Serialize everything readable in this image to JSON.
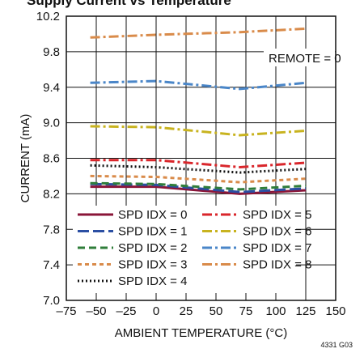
{
  "header": {
    "cropped_title": "Supply Current vs Temperature"
  },
  "figure_id": "4331 G03",
  "chart_data": {
    "type": "line",
    "title": "",
    "xlabel": "AMBIENT TEMPERATURE (°C)",
    "ylabel": "CURRENT (mA)",
    "xlim": [
      -75,
      150
    ],
    "ylim": [
      7.0,
      10.2
    ],
    "x_ticks": [
      -75,
      -50,
      -25,
      0,
      25,
      50,
      75,
      100,
      125,
      150
    ],
    "x_tick_labels": [
      "–75",
      "–50",
      "–25",
      "0",
      "25",
      "50",
      "75",
      "100",
      "125",
      "150"
    ],
    "y_ticks": [
      7.0,
      7.4,
      7.8,
      8.2,
      8.6,
      9.0,
      9.4,
      9.8,
      10.2
    ],
    "y_tick_labels": [
      "7.0",
      "7.4",
      "7.8",
      "8.2",
      "8.6",
      "9.0",
      "9.4",
      "9.8",
      "10.2"
    ],
    "grid": true,
    "legend_position": "bottom",
    "annotation": "REMOTE = 0",
    "x": [
      -55,
      0,
      70,
      125
    ],
    "series": [
      {
        "name": "SPD IDX = 0",
        "values": [
          8.28,
          8.28,
          8.2,
          8.24
        ],
        "color": "#8a1538",
        "dash": "solid"
      },
      {
        "name": "SPD IDX = 1",
        "values": [
          8.31,
          8.3,
          8.22,
          8.26
        ],
        "color": "#2b4fa3",
        "dash": "longdash"
      },
      {
        "name": "SPD IDX = 2",
        "values": [
          8.32,
          8.31,
          8.25,
          8.29
        ],
        "color": "#2f7d3a",
        "dash": "dash"
      },
      {
        "name": "SPD IDX = 3",
        "values": [
          8.4,
          8.39,
          8.33,
          8.37
        ],
        "color": "#d98b4a",
        "dash": "shortdash"
      },
      {
        "name": "SPD IDX = 4",
        "values": [
          8.52,
          8.5,
          8.44,
          8.48
        ],
        "color": "#111111",
        "dash": "dot"
      },
      {
        "name": "SPD IDX = 5",
        "values": [
          8.58,
          8.58,
          8.5,
          8.55
        ],
        "color": "#d9262b",
        "dash": "dashdot"
      },
      {
        "name": "SPD IDX = 6",
        "values": [
          8.96,
          8.95,
          8.86,
          8.91
        ],
        "color": "#c8b31f",
        "dash": "dashdot"
      },
      {
        "name": "SPD IDX = 7",
        "values": [
          9.45,
          9.47,
          9.38,
          9.45
        ],
        "color": "#4a86c8",
        "dash": "dashdot"
      },
      {
        "name": "SPD IDX = 8",
        "values": [
          9.96,
          9.99,
          10.02,
          10.06
        ],
        "color": "#d98b4a",
        "dash": "dashdot"
      }
    ]
  }
}
